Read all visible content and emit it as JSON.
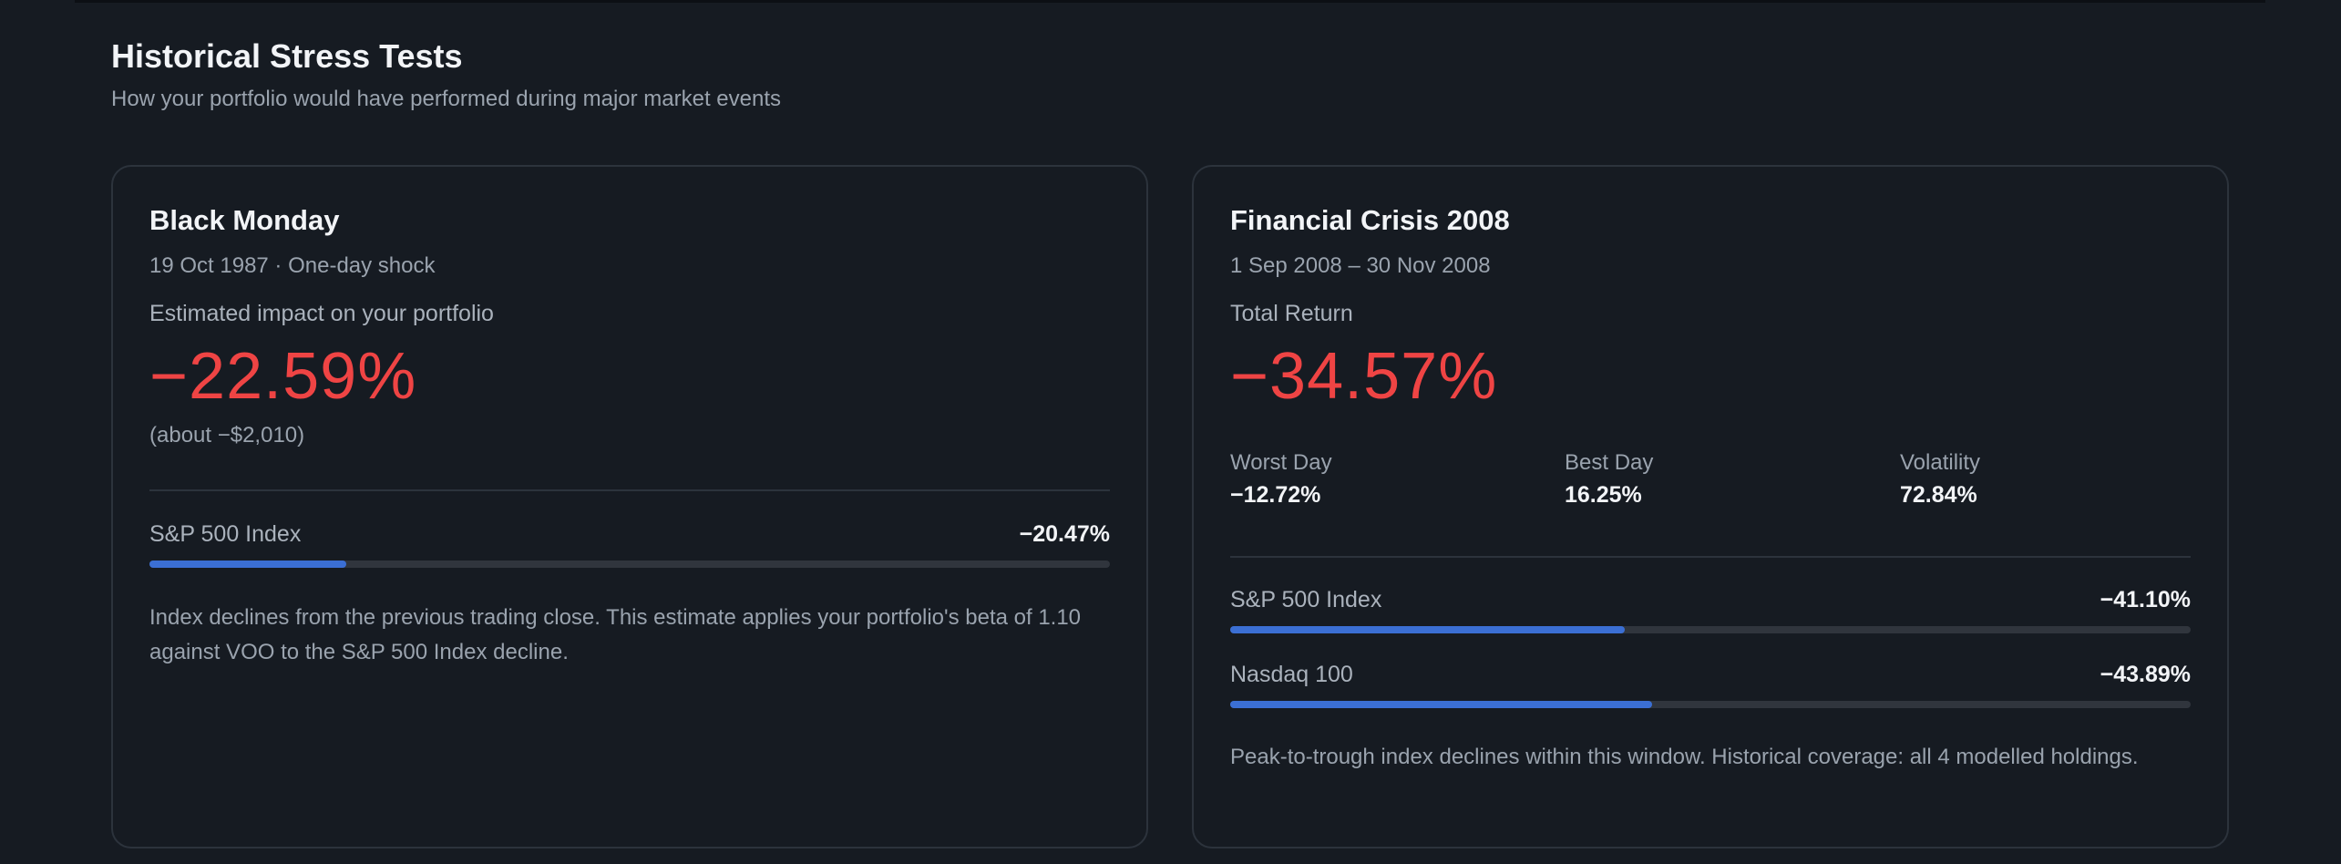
{
  "header": {
    "title": "Historical Stress Tests",
    "subtitle": "How your portfolio would have performed during major market events"
  },
  "colors": {
    "background": "#161b22",
    "negative": "#ef4444",
    "bar_fill": "#3b6fd4",
    "bar_track": "#30353d"
  },
  "cards": [
    {
      "title": "Black Monday",
      "date": "19 Oct 1987 · One-day shock",
      "label": "Estimated impact on your portfolio",
      "value": "−22.59%",
      "approx": "(about −$2,010)",
      "indices": [
        {
          "name": "S&P 500 Index",
          "value": "−20.47%",
          "fill_fraction": 0.205
        }
      ],
      "note": "Index declines from the previous trading close. This estimate applies your portfolio's beta of 1.10 against VOO to the S&P 500 Index decline."
    },
    {
      "title": "Financial Crisis 2008",
      "date": "1 Sep 2008 – 30 Nov 2008",
      "label": "Total Return",
      "value": "−34.57%",
      "stats": [
        {
          "label": "Worst Day",
          "value": "−12.72%"
        },
        {
          "label": "Best Day",
          "value": "16.25%"
        },
        {
          "label": "Volatility",
          "value": "72.84%"
        }
      ],
      "indices": [
        {
          "name": "S&P 500 Index",
          "value": "−41.10%",
          "fill_fraction": 0.411
        },
        {
          "name": "Nasdaq 100",
          "value": "−43.89%",
          "fill_fraction": 0.439
        }
      ],
      "note": "Peak-to-trough index declines within this window. Historical coverage: all 4 modelled holdings."
    }
  ]
}
